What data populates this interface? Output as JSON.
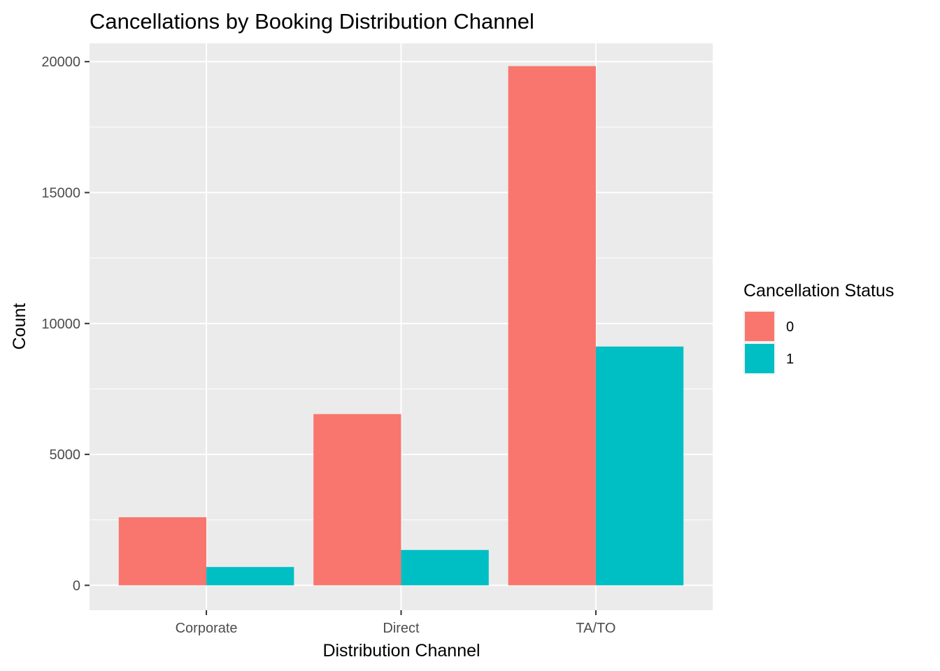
{
  "chart_data": {
    "type": "bar",
    "title": "Cancellations by Booking Distribution Channel",
    "xlabel": "Distribution Channel",
    "ylabel": "Count",
    "categories": [
      "Corporate",
      "Direct",
      "TA/TO"
    ],
    "series": [
      {
        "name": "0",
        "values": [
          2600,
          6540,
          19830
        ],
        "color": "#F8766D"
      },
      {
        "name": "1",
        "values": [
          700,
          1350,
          9120
        ],
        "color": "#00BFC4"
      }
    ],
    "ylim": [
      -950,
      20700
    ],
    "yticks": [
      0,
      5000,
      10000,
      15000,
      20000
    ],
    "ytick_labels": [
      "0",
      "5000",
      "10000",
      "15000",
      "20000"
    ],
    "legend": {
      "title": "Cancellation Status",
      "position": "right"
    },
    "grid": true,
    "panel_background": "#EBEBEB",
    "gridline_color": "#FFFFFF"
  }
}
